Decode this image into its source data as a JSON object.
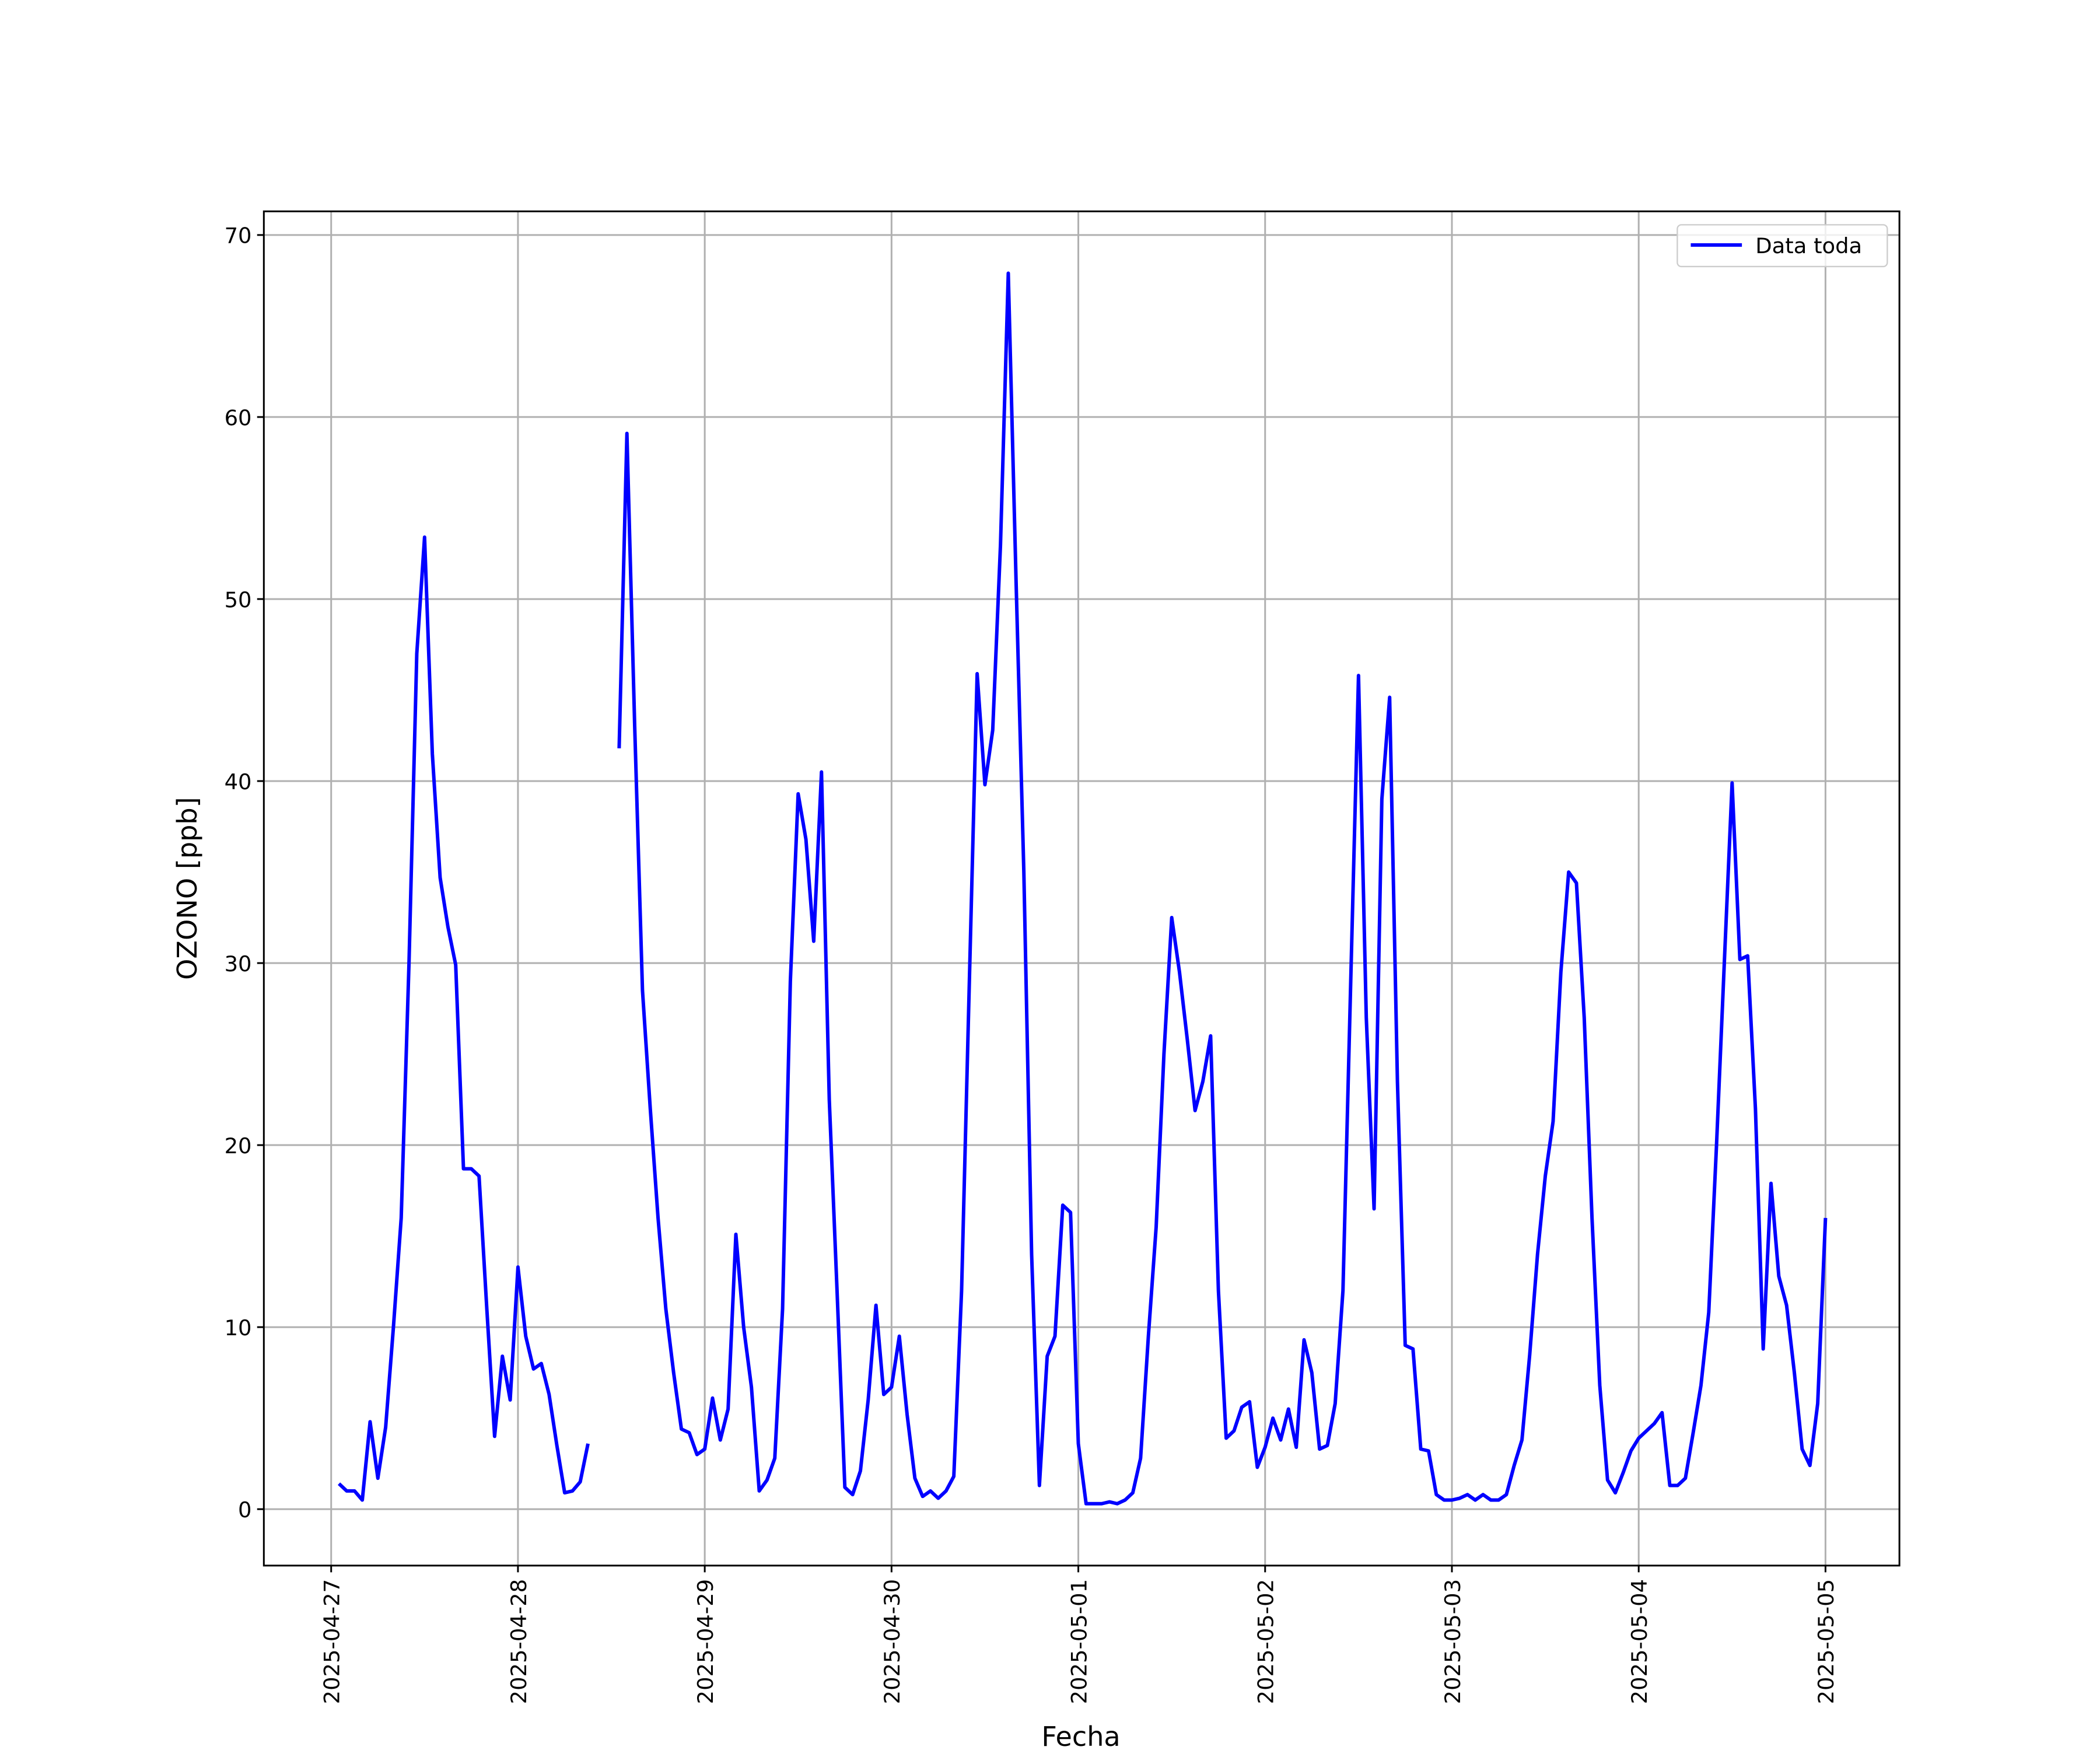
{
  "chart_data": {
    "type": "line",
    "xlabel": "Fecha",
    "ylabel": "OZONO [ppb]",
    "xlim": [
      "2025-04-26 15:21",
      "2025-05-05 09:30"
    ],
    "xticks": [
      "2025-04-27",
      "2025-04-28",
      "2025-04-29",
      "2025-04-30",
      "2025-05-01",
      "2025-05-02",
      "2025-05-03",
      "2025-05-04",
      "2025-05-05"
    ],
    "ylim": [
      -3.1,
      71.3
    ],
    "yticks": [
      0,
      10,
      20,
      30,
      40,
      50,
      60,
      70
    ],
    "grid": true,
    "legend": "upper right",
    "x": [
      "2025-04-27 01:00",
      "2025-04-27 02:00",
      "2025-04-27 03:00",
      "2025-04-27 04:00",
      "2025-04-27 05:00",
      "2025-04-27 06:00",
      "2025-04-27 07:00",
      "2025-04-27 08:00",
      "2025-04-27 09:00",
      "2025-04-27 10:00",
      "2025-04-27 11:00",
      "2025-04-27 12:00",
      "2025-04-27 13:00",
      "2025-04-27 14:00",
      "2025-04-27 15:00",
      "2025-04-27 16:00",
      "2025-04-27 17:00",
      "2025-04-27 18:00",
      "2025-04-27 19:00",
      "2025-04-27 20:00",
      "2025-04-27 21:00",
      "2025-04-27 22:00",
      "2025-04-27 23:00",
      "2025-04-28 00:00",
      "2025-04-28 01:00",
      "2025-04-28 02:00",
      "2025-04-28 03:00",
      "2025-04-28 04:00",
      "2025-04-28 05:00",
      "2025-04-28 06:00",
      "2025-04-28 07:00",
      "2025-04-28 08:00",
      "2025-04-28 09:00",
      "2025-04-28 10:00",
      "2025-04-28 11:00",
      "2025-04-28 12:00",
      "2025-04-28 13:00",
      "2025-04-28 14:00",
      "2025-04-28 15:00",
      "2025-04-28 16:00",
      "2025-04-28 17:00",
      "2025-04-28 18:00",
      "2025-04-28 19:00",
      "2025-04-28 20:00",
      "2025-04-28 21:00",
      "2025-04-28 22:00",
      "2025-04-28 23:00",
      "2025-04-29 00:00",
      "2025-04-29 01:00",
      "2025-04-29 02:00",
      "2025-04-29 03:00",
      "2025-04-29 04:00",
      "2025-04-29 05:00",
      "2025-04-29 06:00",
      "2025-04-29 07:00",
      "2025-04-29 08:00",
      "2025-04-29 09:00",
      "2025-04-29 10:00",
      "2025-04-29 11:00",
      "2025-04-29 12:00",
      "2025-04-29 13:00",
      "2025-04-29 14:00",
      "2025-04-29 15:00",
      "2025-04-29 16:00",
      "2025-04-29 17:00",
      "2025-04-29 18:00",
      "2025-04-29 19:00",
      "2025-04-29 20:00",
      "2025-04-29 21:00",
      "2025-04-29 22:00",
      "2025-04-29 23:00",
      "2025-04-30 00:00",
      "2025-04-30 01:00",
      "2025-04-30 02:00",
      "2025-04-30 03:00",
      "2025-04-30 04:00",
      "2025-04-30 05:00",
      "2025-04-30 06:00",
      "2025-04-30 07:00",
      "2025-04-30 08:00",
      "2025-04-30 09:00",
      "2025-04-30 10:00",
      "2025-04-30 11:00",
      "2025-04-30 12:00",
      "2025-04-30 13:00",
      "2025-04-30 14:00",
      "2025-04-30 15:00",
      "2025-04-30 16:00",
      "2025-04-30 17:00",
      "2025-04-30 18:00",
      "2025-04-30 19:00",
      "2025-04-30 20:00",
      "2025-04-30 21:00",
      "2025-04-30 22:00",
      "2025-04-30 23:00",
      "2025-05-01 00:00",
      "2025-05-01 01:00",
      "2025-05-01 02:00",
      "2025-05-01 03:00",
      "2025-05-01 04:00",
      "2025-05-01 05:00",
      "2025-05-01 06:00",
      "2025-05-01 07:00",
      "2025-05-01 08:00",
      "2025-05-01 09:00",
      "2025-05-01 10:00",
      "2025-05-01 11:00",
      "2025-05-01 12:00",
      "2025-05-01 13:00",
      "2025-05-01 14:00",
      "2025-05-01 15:00",
      "2025-05-01 16:00",
      "2025-05-01 17:00",
      "2025-05-01 18:00",
      "2025-05-01 19:00",
      "2025-05-01 20:00",
      "2025-05-01 21:00",
      "2025-05-01 22:00",
      "2025-05-01 23:00",
      "2025-05-02 00:00",
      "2025-05-02 01:00",
      "2025-05-02 02:00",
      "2025-05-02 03:00",
      "2025-05-02 04:00",
      "2025-05-02 05:00",
      "2025-05-02 06:00",
      "2025-05-02 07:00",
      "2025-05-02 08:00",
      "2025-05-02 09:00",
      "2025-05-02 10:00",
      "2025-05-02 11:00",
      "2025-05-02 12:00",
      "2025-05-02 13:00",
      "2025-05-02 14:00",
      "2025-05-02 15:00",
      "2025-05-02 16:00",
      "2025-05-02 17:00",
      "2025-05-02 18:00",
      "2025-05-02 19:00",
      "2025-05-02 20:00",
      "2025-05-02 21:00",
      "2025-05-02 22:00",
      "2025-05-02 23:00",
      "2025-05-03 00:00",
      "2025-05-03 01:00",
      "2025-05-03 02:00",
      "2025-05-03 03:00",
      "2025-05-03 04:00",
      "2025-05-03 05:00",
      "2025-05-03 06:00",
      "2025-05-03 07:00",
      "2025-05-03 08:00",
      "2025-05-03 09:00",
      "2025-05-03 10:00",
      "2025-05-03 11:00",
      "2025-05-03 12:00",
      "2025-05-03 13:00",
      "2025-05-03 14:00",
      "2025-05-03 15:00",
      "2025-05-03 16:00",
      "2025-05-03 17:00",
      "2025-05-03 18:00",
      "2025-05-03 19:00",
      "2025-05-03 20:00",
      "2025-05-03 21:00",
      "2025-05-03 22:00",
      "2025-05-03 23:00",
      "2025-05-04 00:00",
      "2025-05-04 01:00",
      "2025-05-04 02:00",
      "2025-05-04 03:00",
      "2025-05-04 04:00",
      "2025-05-04 05:00",
      "2025-05-04 06:00",
      "2025-05-04 07:00",
      "2025-05-04 08:00",
      "2025-05-04 09:00",
      "2025-05-04 10:00",
      "2025-05-04 11:00",
      "2025-05-04 12:00",
      "2025-05-04 13:00",
      "2025-05-04 14:00",
      "2025-05-04 15:00",
      "2025-05-04 16:00",
      "2025-05-04 17:00",
      "2025-05-04 18:00",
      "2025-05-04 19:00",
      "2025-05-04 20:00",
      "2025-05-04 21:00",
      "2025-05-04 22:00",
      "2025-05-04 23:00",
      "2025-05-05 00:00"
    ],
    "series": [
      {
        "name": "Data toda",
        "color": "#0000ff",
        "values": [
          1.4,
          1.0,
          1.0,
          0.5,
          4.8,
          1.7,
          4.5,
          10,
          16,
          30,
          47,
          53.4,
          41.5,
          34.7,
          32,
          29.9,
          18.7,
          18.7,
          18.3,
          11,
          4.0,
          8.4,
          6.0,
          13.3,
          9.5,
          7.7,
          8.0,
          6.3,
          3.5,
          0.9,
          1.0,
          1.5,
          3.6,
          null,
          null,
          null,
          41.8,
          59.1,
          43,
          28.5,
          22,
          16,
          11,
          7.5,
          4.4,
          4.2,
          3.0,
          3.3,
          6.1,
          3.8,
          5.5,
          15.1,
          10,
          6.7,
          1.0,
          1.6,
          2.8,
          11,
          29,
          39.3,
          36.8,
          31.2,
          40.5,
          22.5,
          12,
          1.2,
          0.8,
          2.1,
          6,
          11.2,
          6.3,
          6.7,
          9.5,
          5.2,
          1.7,
          0.7,
          1.0,
          0.6,
          1.0,
          1.8,
          12,
          29,
          45.9,
          39.8,
          42.8,
          53,
          67.9,
          51,
          35,
          14,
          1.3,
          8.4,
          9.5,
          16.7,
          16.3,
          3.6,
          0.3,
          0.3,
          0.3,
          0.4,
          0.3,
          0.5,
          0.9,
          2.8,
          9.5,
          15.5,
          25,
          32.5,
          29.5,
          25.8,
          21.9,
          23.5,
          26,
          12,
          3.9,
          4.3,
          5.6,
          5.9,
          2.3,
          3.4,
          5.0,
          3.8,
          5.5,
          3.4,
          9.3,
          7.5,
          3.3,
          3.5,
          5.8,
          12,
          29,
          45.8,
          27,
          16.5,
          39,
          44.6,
          23.5,
          9.0,
          8.8,
          3.3,
          3.2,
          0.8,
          0.5,
          0.5,
          0.6,
          0.8,
          0.5,
          0.8,
          0.5,
          0.5,
          0.8,
          2.4,
          3.8,
          8.5,
          14,
          18.3,
          21.3,
          29.5,
          35,
          34.4,
          27,
          16,
          6.8,
          1.6,
          0.9,
          2,
          3.2,
          3.9,
          4.3,
          4.7,
          5.3,
          1.3,
          1.3,
          1.7,
          4.2,
          6.8,
          10.8,
          20,
          30,
          39.9,
          30.2,
          30.4,
          22,
          8.8,
          17.9,
          12.8,
          11.2,
          7.5,
          3.3,
          2.4,
          5.8,
          16.0
        ]
      }
    ]
  }
}
